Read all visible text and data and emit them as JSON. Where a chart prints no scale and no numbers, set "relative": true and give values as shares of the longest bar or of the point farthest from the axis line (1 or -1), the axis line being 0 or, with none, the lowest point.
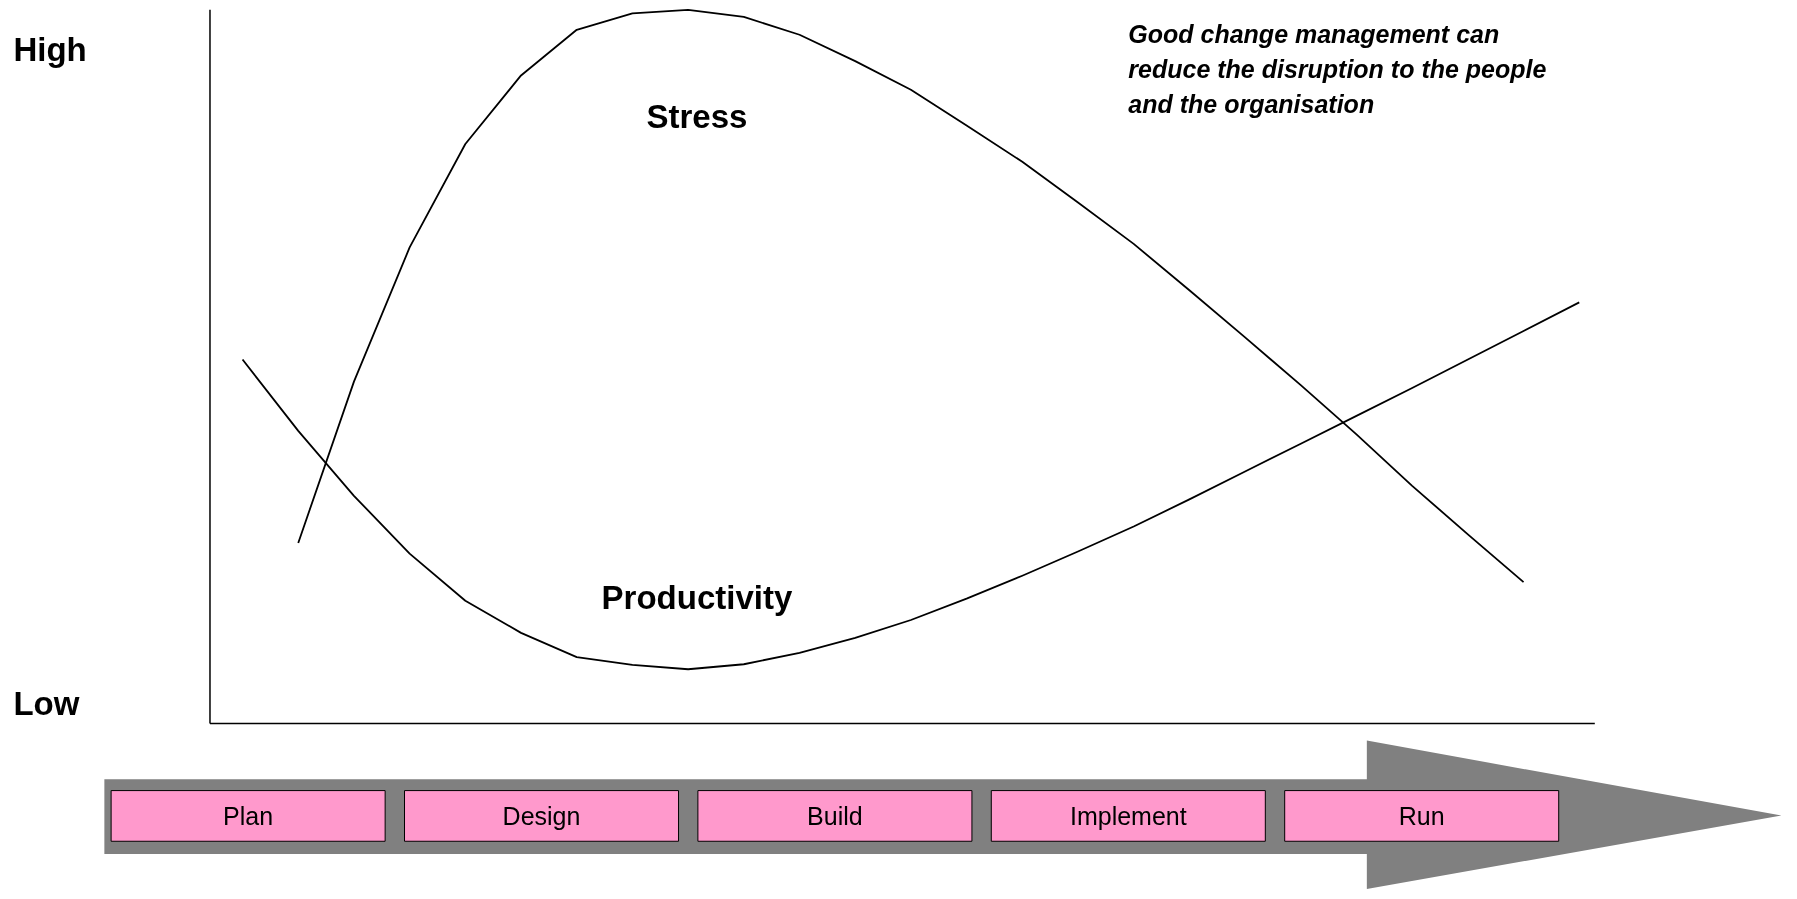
{
  "chart_data": {
    "type": "line",
    "relative": true,
    "categories": [
      null,
      null,
      null,
      null,
      null,
      null,
      null,
      null,
      null,
      null,
      null,
      null,
      null,
      null,
      null,
      null,
      null,
      null,
      null,
      null,
      null,
      null,
      null,
      null,
      null
    ],
    "series": [
      {
        "name": "Stress",
        "color": "#000000",
        "values": [
          null,
          0.253,
          0.479,
          0.667,
          0.812,
          0.908,
          0.972,
          0.995,
          1.0,
          0.99,
          0.965,
          0.928,
          0.888,
          0.838,
          0.787,
          0.73,
          0.672,
          0.607,
          0.541,
          0.474,
          0.405,
          0.333,
          0.265,
          0.198,
          null
        ]
      },
      {
        "name": "Productivity",
        "color": "#000000",
        "values": [
          0.51,
          0.41,
          0.319,
          0.238,
          0.172,
          0.127,
          0.093,
          0.082,
          0.076,
          0.083,
          0.099,
          0.12,
          0.145,
          0.175,
          0.207,
          0.241,
          0.276,
          0.314,
          0.353,
          0.392,
          0.431,
          0.47,
          0.51,
          0.55,
          0.59
        ]
      }
    ],
    "annotations": [
      "High",
      "Low",
      "Good change management can\nreduce the disruption to the people\nand the organisation",
      "Plan",
      "Design",
      "Build",
      "Implement",
      "Run"
    ],
    "line_style": "solid",
    "marker": "none"
  }
}
